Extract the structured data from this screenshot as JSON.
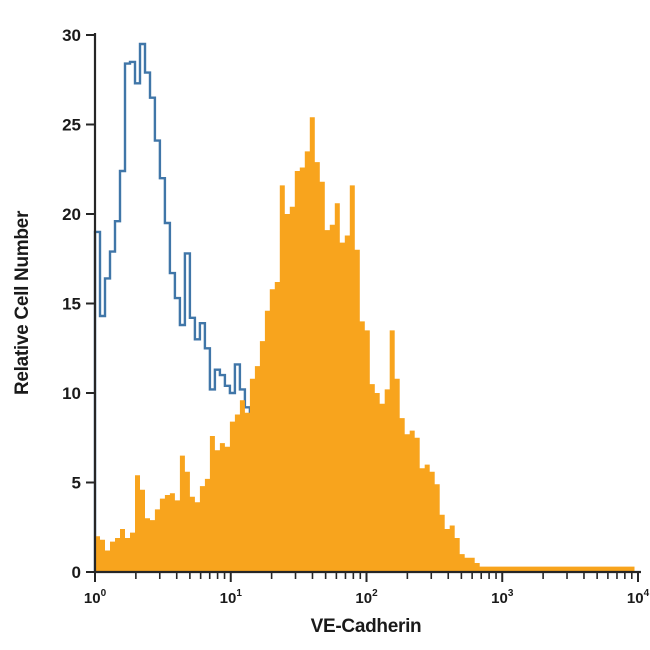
{
  "chart_data": {
    "type": "area",
    "subtype": "flow-cytometry-overlaid-step-histograms",
    "title": "",
    "xlabel": "VE-Cadherin",
    "ylabel": "Relative Cell Number",
    "x_scale": "log10",
    "x_range_log10": [
      0,
      4
    ],
    "x_tick_exponents": [
      0,
      1,
      2,
      3,
      4
    ],
    "x_minor_ticks_per_decade": [
      2,
      3,
      4,
      5,
      6,
      7,
      8,
      9
    ],
    "ylim": [
      0,
      30
    ],
    "y_ticks": [
      0,
      5,
      10,
      15,
      20,
      25,
      30
    ],
    "grid": false,
    "legend": "none",
    "bin_width_log10": 0.0368,
    "axis_color": "#262626",
    "text_color": "#1a1a1a",
    "series": [
      {
        "name": "open-control-histogram",
        "style": "open-step",
        "color": "#4076A8",
        "stroke_width": 2.4,
        "start_log10": 0,
        "values": [
          19.0,
          14.3,
          16.4,
          17.9,
          19.6,
          22.4,
          28.4,
          28.5,
          27.3,
          29.5,
          27.9,
          26.5,
          24.1,
          22.0,
          19.5,
          16.7,
          15.3,
          13.8,
          17.8,
          14.2,
          13.0,
          13.9,
          12.5,
          10.2,
          11.3,
          11.0,
          10.4,
          10.0,
          11.6,
          10.2,
          9.2
        ]
      },
      {
        "name": "filled-stained-histogram",
        "style": "filled-step",
        "color": "#F8A41D",
        "start_log10": 0,
        "values": [
          2.0,
          1.8,
          1.2,
          1.7,
          1.9,
          2.4,
          1.9,
          2.2,
          5.4,
          4.6,
          3.0,
          2.9,
          3.5,
          4.1,
          4.3,
          4.4,
          4.0,
          6.5,
          5.6,
          4.2,
          3.9,
          4.8,
          5.2,
          7.6,
          6.8,
          7.2,
          7.0,
          8.4,
          8.8,
          9.6,
          8.9,
          10.8,
          11.5,
          12.9,
          14.6,
          15.8,
          16.2,
          21.6,
          20.0,
          20.4,
          22.4,
          22.6,
          23.5,
          25.4,
          22.9,
          21.8,
          19.1,
          19.4,
          20.6,
          18.4,
          18.8,
          21.6,
          18.0,
          14.0,
          13.5,
          10.5,
          10.0,
          9.4,
          10.2,
          13.5,
          10.8,
          8.6,
          7.7,
          7.9,
          7.5,
          5.8,
          6.0,
          5.6,
          4.9,
          3.2,
          2.4,
          2.6,
          1.9,
          1.0,
          0.8,
          0.8,
          0.5,
          0.3,
          0.3,
          0.3,
          0.3,
          0.3,
          0.3,
          0.3,
          0.3,
          0.3,
          0.3,
          0.3,
          0.3,
          0.3,
          0.3,
          0.3,
          0.3,
          0.3,
          0.3,
          0.3,
          0.3,
          0.3,
          0.3,
          0.3,
          0.3,
          0.3,
          0.3,
          0.3,
          0.3,
          0.3,
          0.3,
          0.3,
          0
        ]
      }
    ]
  }
}
